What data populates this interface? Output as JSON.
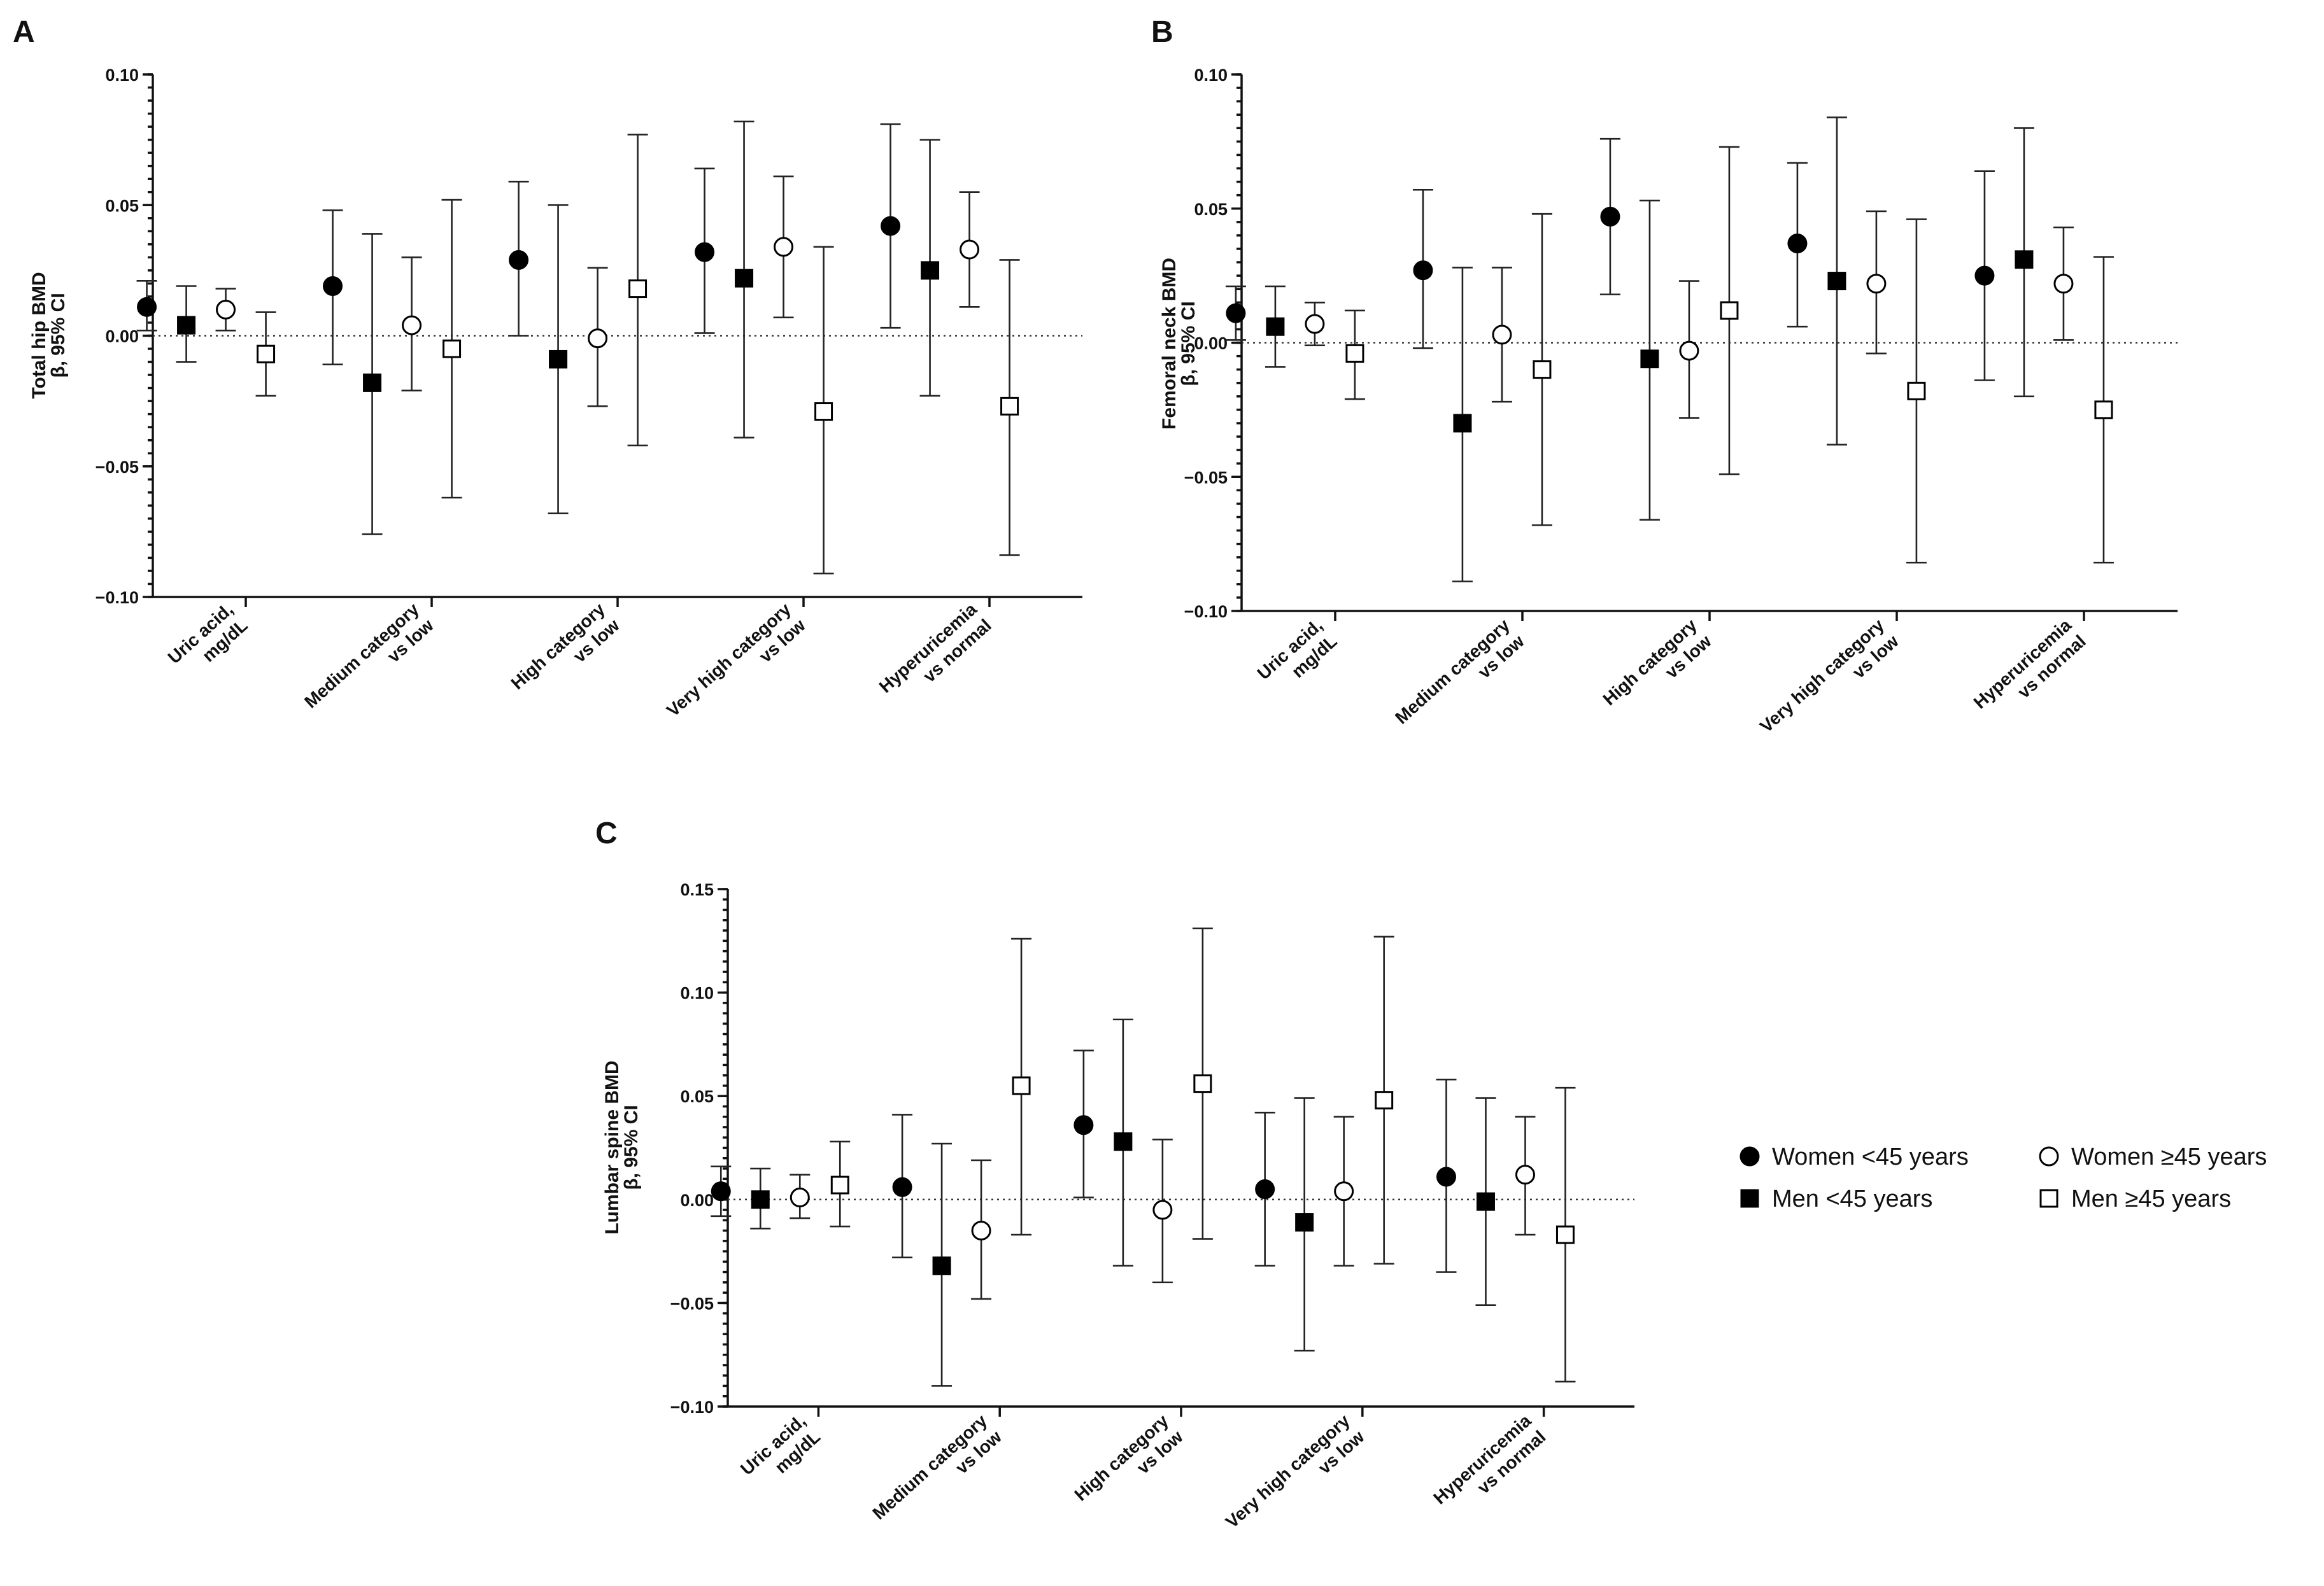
{
  "chart_data": [
    {
      "type": "scatter",
      "panel": "A",
      "ylabel": [
        "Total hip  BMD",
        "β, 95% CI"
      ],
      "ylim": [
        -0.1,
        0.1
      ],
      "yticks": [
        "0.10",
        "0.05",
        "0.00",
        "−0.05",
        "−0.10"
      ],
      "ytick_values": [
        0.1,
        0.05,
        0.0,
        -0.05,
        -0.1
      ],
      "categories": [
        [
          "Uric acid,",
          "mg/dL"
        ],
        [
          "Medium category",
          "vs low"
        ],
        [
          "High category",
          "vs low"
        ],
        [
          "Very high category",
          "vs low"
        ],
        [
          "Hyperuricemia",
          "vs normal"
        ]
      ],
      "series": [
        {
          "name": "Women <45 years",
          "marker": "filled-circle",
          "est": [
            0.011,
            0.019,
            0.029,
            0.032,
            0.042
          ],
          "lo": [
            0.002,
            -0.011,
            0.0,
            0.001,
            0.003
          ],
          "hi": [
            0.021,
            0.048,
            0.059,
            0.064,
            0.081
          ]
        },
        {
          "name": "Men <45 years",
          "marker": "filled-square",
          "est": [
            0.004,
            -0.018,
            -0.009,
            0.022,
            0.025
          ],
          "lo": [
            -0.01,
            -0.076,
            -0.068,
            -0.039,
            -0.023
          ],
          "hi": [
            0.019,
            0.039,
            0.05,
            0.082,
            0.075
          ]
        },
        {
          "name": "Women ≥45 years",
          "marker": "open-circle",
          "est": [
            0.01,
            0.004,
            -0.001,
            0.034,
            0.033
          ],
          "lo": [
            0.002,
            -0.021,
            -0.027,
            0.007,
            0.011
          ],
          "hi": [
            0.018,
            0.03,
            0.026,
            0.061,
            0.055
          ]
        },
        {
          "name": "Men ≥45 years",
          "marker": "open-square",
          "est": [
            -0.007,
            -0.005,
            0.018,
            -0.029,
            -0.027
          ],
          "lo": [
            -0.023,
            -0.062,
            -0.042,
            -0.091,
            -0.084
          ],
          "hi": [
            0.009,
            0.052,
            0.077,
            0.034,
            0.029
          ]
        }
      ]
    },
    {
      "type": "scatter",
      "panel": "B",
      "ylabel": [
        "Femoral neck  BMD",
        "β, 95% CI"
      ],
      "ylim": [
        -0.1,
        0.1
      ],
      "yticks": [
        "0.10",
        "0.05",
        "0.00",
        "−0.05",
        "−0.10"
      ],
      "ytick_values": [
        0.1,
        0.05,
        0.0,
        -0.05,
        -0.1
      ],
      "categories": [
        [
          "Uric acid,",
          "mg/dL"
        ],
        [
          "Medium category",
          "vs low"
        ],
        [
          "High category",
          "vs low"
        ],
        [
          "Very high category",
          "vs low"
        ],
        [
          "Hyperuricemia",
          "vs normal"
        ]
      ],
      "series": [
        {
          "name": "Women <45 years",
          "marker": "filled-circle",
          "est": [
            0.011,
            0.027,
            0.047,
            0.037,
            0.025
          ],
          "lo": [
            0.001,
            -0.002,
            0.018,
            0.006,
            -0.014
          ],
          "hi": [
            0.021,
            0.057,
            0.076,
            0.067,
            0.064
          ]
        },
        {
          "name": "Men <45 years",
          "marker": "filled-square",
          "est": [
            0.006,
            -0.03,
            -0.006,
            0.023,
            0.031
          ],
          "lo": [
            -0.009,
            -0.089,
            -0.066,
            -0.038,
            -0.02
          ],
          "hi": [
            0.021,
            0.028,
            0.053,
            0.084,
            0.08
          ]
        },
        {
          "name": "Women ≥45 years",
          "marker": "open-circle",
          "est": [
            0.007,
            0.003,
            -0.003,
            0.022,
            0.022
          ],
          "lo": [
            -0.001,
            -0.022,
            -0.028,
            -0.004,
            0.001
          ],
          "hi": [
            0.015,
            0.028,
            0.023,
            0.049,
            0.043
          ]
        },
        {
          "name": "Men ≥45 years",
          "marker": "open-square",
          "est": [
            -0.004,
            -0.01,
            0.012,
            -0.018,
            -0.025
          ],
          "lo": [
            -0.021,
            -0.068,
            -0.049,
            -0.082,
            -0.082
          ],
          "hi": [
            0.012,
            0.048,
            0.073,
            0.046,
            0.032
          ]
        }
      ]
    },
    {
      "type": "scatter",
      "panel": "C",
      "ylabel": [
        "Lumbar spine  BMD",
        "β, 95% CI"
      ],
      "ylim": [
        -0.1,
        0.15
      ],
      "yticks": [
        "0.15",
        "0.10",
        "0.05",
        "0.00",
        "−0.05",
        "−0.10"
      ],
      "ytick_values": [
        0.15,
        0.1,
        0.05,
        0.0,
        -0.05,
        -0.1
      ],
      "categories": [
        [
          "Uric acid,",
          "mg/dL"
        ],
        [
          "Medium category",
          "vs low"
        ],
        [
          "High category",
          "vs low"
        ],
        [
          "Very high category",
          "vs low"
        ],
        [
          "Hyperuricemia",
          "vs normal"
        ]
      ],
      "series": [
        {
          "name": "Women <45 years",
          "marker": "filled-circle",
          "est": [
            0.004,
            0.006,
            0.036,
            0.005,
            0.011
          ],
          "lo": [
            -0.008,
            -0.028,
            0.001,
            -0.032,
            -0.035
          ],
          "hi": [
            0.016,
            0.041,
            0.072,
            0.042,
            0.058
          ]
        },
        {
          "name": "Men <45 years",
          "marker": "filled-square",
          "est": [
            0.0,
            -0.032,
            0.028,
            -0.011,
            -0.001
          ],
          "lo": [
            -0.014,
            -0.09,
            -0.032,
            -0.073,
            -0.051
          ],
          "hi": [
            0.015,
            0.027,
            0.087,
            0.049,
            0.049
          ]
        },
        {
          "name": "Women ≥45 years",
          "marker": "open-circle",
          "est": [
            0.001,
            -0.015,
            -0.005,
            0.004,
            0.012
          ],
          "lo": [
            -0.009,
            -0.048,
            -0.04,
            -0.032,
            -0.017
          ],
          "hi": [
            0.012,
            0.019,
            0.029,
            0.04,
            0.04
          ]
        },
        {
          "name": "Men ≥45 years",
          "marker": "open-square",
          "est": [
            0.007,
            0.055,
            0.056,
            0.048,
            -0.017
          ],
          "lo": [
            -0.013,
            -0.017,
            -0.019,
            -0.031,
            -0.088
          ],
          "hi": [
            0.028,
            0.126,
            0.131,
            0.127,
            0.054
          ]
        }
      ]
    }
  ],
  "legend": {
    "items": [
      {
        "label": "Women <45 years",
        "marker": "filled-circle"
      },
      {
        "label": "Women ≥45 years",
        "marker": "open-circle"
      },
      {
        "label": "Men <45 years",
        "marker": "filled-square"
      },
      {
        "label": "Men ≥45 years",
        "marker": "open-square"
      }
    ]
  }
}
